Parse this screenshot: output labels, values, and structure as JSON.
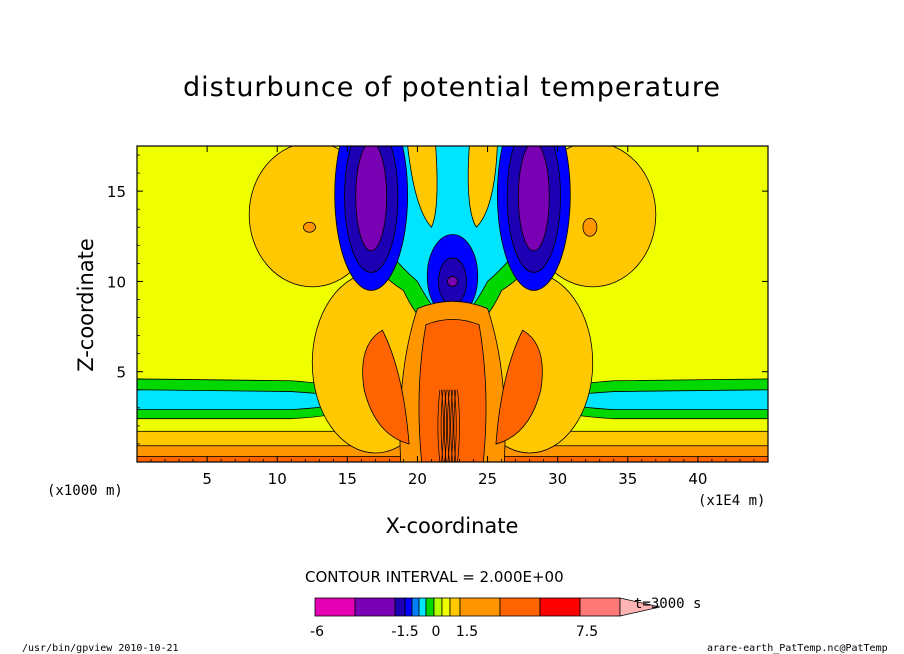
{
  "chart_data": {
    "type": "heatmap",
    "title": "disturbunce of potential temperature",
    "xlabel": "X-coordinate",
    "ylabel": "Z-coordinate",
    "x_unit_left": "(x1000 m)",
    "x_unit_right": "(x1E4 m)",
    "xlim": [
      0,
      45
    ],
    "ylim": [
      0,
      17.5
    ],
    "xticks": [
      5,
      10,
      15,
      20,
      25,
      30,
      35,
      40
    ],
    "yticks": [
      5,
      10,
      15
    ],
    "contour_interval_label": "CONTOUR INTERVAL = 2.000E+00",
    "time_label": "t=3000 s",
    "colorbar": {
      "colors": [
        "#e600b4",
        "#7a00b4",
        "#1e00b4",
        "#0000ff",
        "#0080ff",
        "#00e5ff",
        "#00d800",
        "#b4ff00",
        "#f0ff00",
        "#ffc800",
        "#ff9600",
        "#ff6400",
        "#ff0000",
        "#ff7878",
        "#ffb4b4"
      ],
      "tick_labels": [
        "-6",
        "-1.5",
        "0",
        "1.5",
        "7.5"
      ]
    },
    "field_description_colors": {
      "background": "#f0ff00",
      "warm_light": "#ffc800",
      "warm_mid": "#ff9600",
      "warm_strong": "#ff6400",
      "cool_light": "#00d800",
      "cool_mid": "#00e5ff",
      "cool_strong": "#1e00b4",
      "cool_extreme": "#7a00b4"
    }
  },
  "footer": {
    "left": "/usr/bin/gpview  2010-10-21",
    "right": "arare-earth_PatTemp.nc@PatTemp"
  }
}
